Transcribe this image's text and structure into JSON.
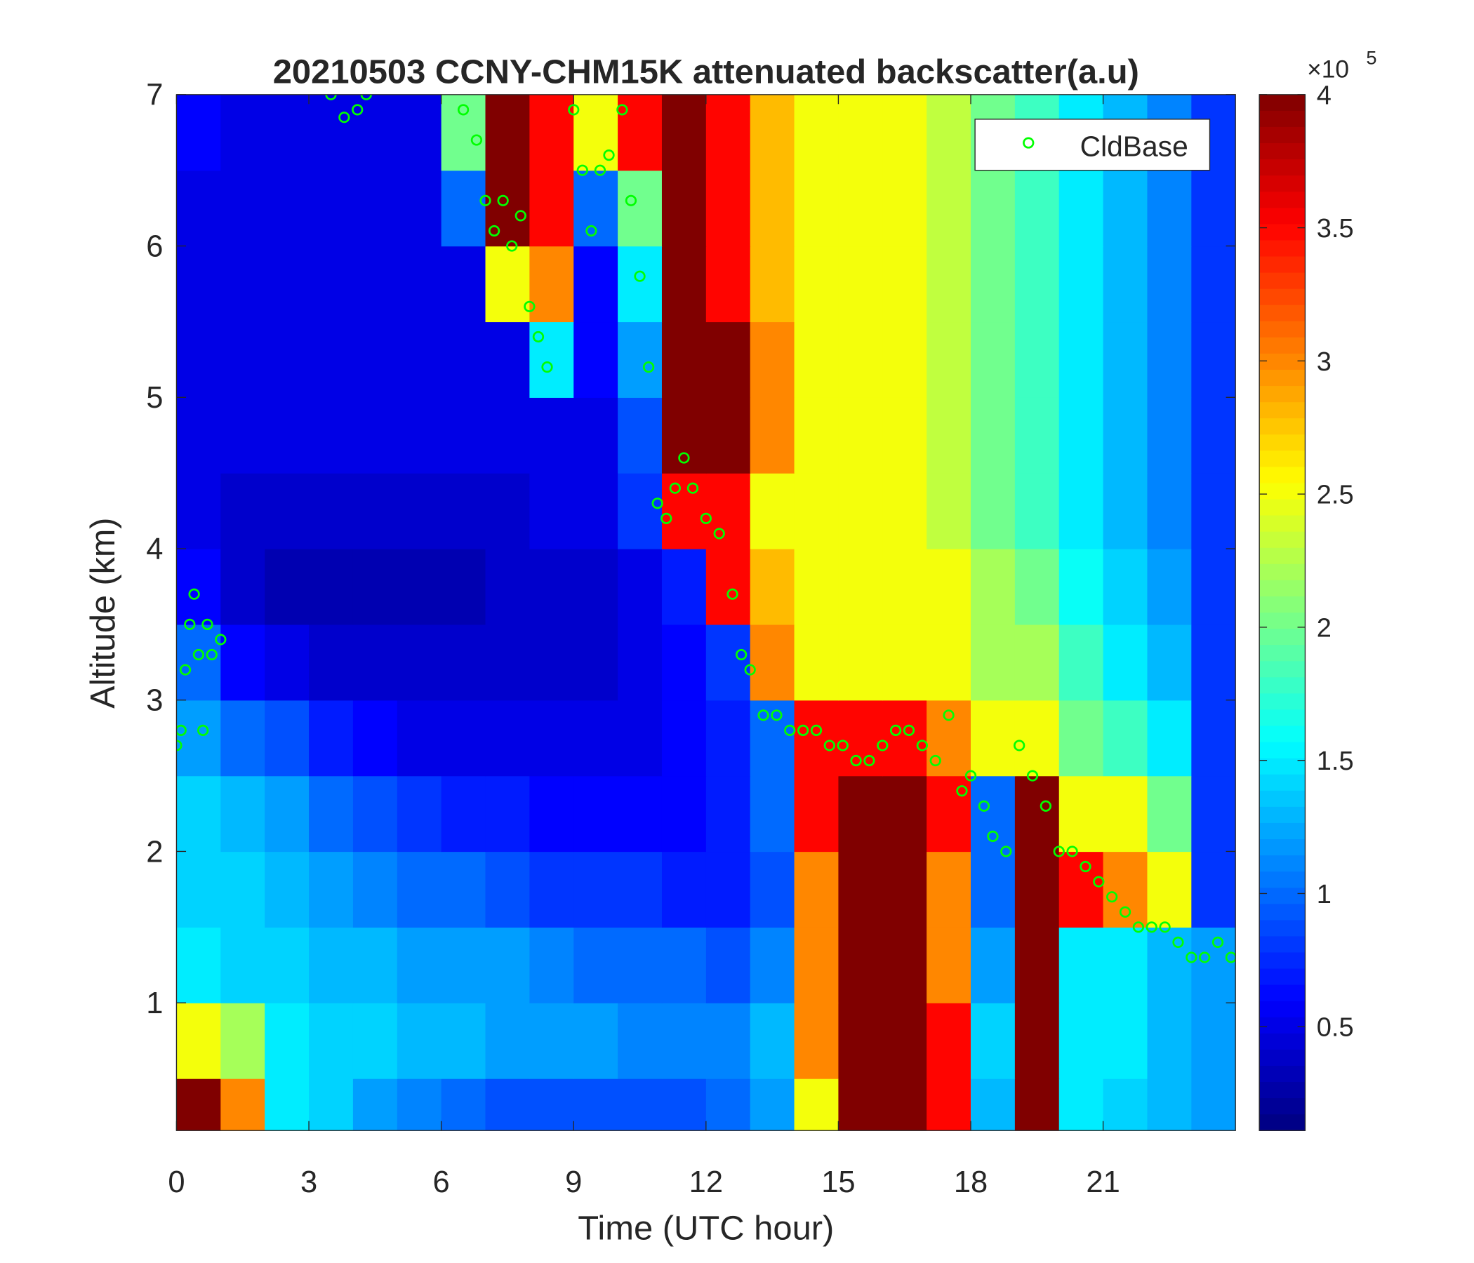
{
  "chart_data": {
    "type": "heatmap",
    "title": "20210503 CCNY-CHM15K attenuated backscatter(a.u)",
    "x_label": "Time (UTC hour)",
    "y_label": "Altitude (km)",
    "xlim": [
      0,
      24
    ],
    "xticks": [
      0,
      3,
      6,
      9,
      12,
      15,
      18,
      21
    ],
    "ylim": [
      0.156,
      7
    ],
    "yticks": [
      1,
      2,
      3,
      4,
      5,
      6,
      7
    ],
    "x": [
      0.5,
      1.5,
      2.5,
      3.5,
      4.5,
      5.5,
      6.5,
      7.5,
      8.5,
      9.5,
      10.5,
      11.5,
      12.5,
      13.5,
      14.5,
      15.5,
      16.5,
      17.5,
      18.5,
      19.5,
      20.5,
      21.5,
      22.5,
      23.5
    ],
    "y": [
      0.25,
      0.75,
      1.25,
      1.75,
      2.25,
      2.75,
      3.25,
      3.75,
      4.25,
      4.75,
      5.25,
      5.75,
      6.25,
      6.75
    ],
    "z": [
      [
        4,
        3,
        1.5,
        1.4,
        1.2,
        1.1,
        1.0,
        0.9,
        0.9,
        0.9,
        0.9,
        0.9,
        1.0,
        1.2,
        2.5,
        4,
        4,
        3.5,
        1.3,
        4,
        1.5,
        1.4,
        1.3,
        1.2
      ],
      [
        2.5,
        2.2,
        1.5,
        1.4,
        1.4,
        1.3,
        1.3,
        1.2,
        1.2,
        1.2,
        1.1,
        1.1,
        1.1,
        1.3,
        3,
        4,
        4,
        3.5,
        1.4,
        4,
        1.5,
        1.5,
        1.3,
        1.2
      ],
      [
        1.5,
        1.4,
        1.4,
        1.3,
        1.3,
        1.2,
        1.2,
        1.2,
        1.1,
        1.0,
        1.0,
        1.0,
        0.9,
        1.1,
        3,
        4,
        4,
        3,
        1.2,
        4,
        1.5,
        1.5,
        1.3,
        1.2
      ],
      [
        1.4,
        1.4,
        1.3,
        1.2,
        1.1,
        1.0,
        1.0,
        0.9,
        0.8,
        0.8,
        0.8,
        0.7,
        0.7,
        0.9,
        3,
        4,
        4,
        3,
        1.0,
        4,
        3.5,
        3,
        2.5,
        0.8
      ],
      [
        1.4,
        1.3,
        1.2,
        1.0,
        0.9,
        0.8,
        0.7,
        0.7,
        0.6,
        0.6,
        0.6,
        0.6,
        0.7,
        1.0,
        3.5,
        4,
        4,
        3.5,
        1.0,
        4,
        2.5,
        2.5,
        2.0,
        0.8
      ],
      [
        1.2,
        1.0,
        0.9,
        0.7,
        0.6,
        0.5,
        0.5,
        0.5,
        0.5,
        0.5,
        0.5,
        0.6,
        0.7,
        1.0,
        3.5,
        3.5,
        3.5,
        3.0,
        2.5,
        2.5,
        2.0,
        1.8,
        1.5,
        0.8
      ],
      [
        1.0,
        0.6,
        0.5,
        0.4,
        0.4,
        0.4,
        0.4,
        0.4,
        0.4,
        0.4,
        0.5,
        0.6,
        0.8,
        3,
        2.5,
        2.5,
        2.5,
        2.5,
        2.2,
        2.2,
        1.8,
        1.5,
        1.3,
        0.8
      ],
      [
        0.6,
        0.4,
        0.3,
        0.3,
        0.3,
        0.3,
        0.3,
        0.4,
        0.4,
        0.4,
        0.5,
        0.7,
        3.5,
        2.8,
        2.5,
        2.5,
        2.5,
        2.5,
        2.2,
        2.0,
        1.6,
        1.4,
        1.2,
        0.8
      ],
      [
        0.5,
        0.4,
        0.4,
        0.4,
        0.4,
        0.4,
        0.4,
        0.4,
        0.5,
        0.5,
        0.8,
        3.5,
        3.5,
        2.5,
        2.5,
        2.5,
        2.5,
        2.3,
        2.0,
        1.8,
        1.5,
        1.3,
        1.1,
        0.8
      ],
      [
        0.5,
        0.5,
        0.5,
        0.5,
        0.5,
        0.5,
        0.5,
        0.5,
        0.5,
        0.5,
        0.9,
        4,
        4,
        3,
        2.5,
        2.5,
        2.5,
        2.3,
        2.0,
        1.8,
        1.5,
        1.3,
        1.1,
        0.8
      ],
      [
        0.5,
        0.5,
        0.5,
        0.5,
        0.5,
        0.5,
        0.5,
        0.5,
        1.5,
        0.6,
        1.2,
        4,
        4,
        3,
        2.5,
        2.5,
        2.5,
        2.3,
        2.0,
        1.8,
        1.5,
        1.3,
        1.1,
        0.8
      ],
      [
        0.5,
        0.5,
        0.5,
        0.5,
        0.5,
        0.5,
        0.5,
        2.5,
        3,
        0.6,
        1.5,
        4,
        3.5,
        2.8,
        2.5,
        2.5,
        2.5,
        2.3,
        2.0,
        1.8,
        1.5,
        1.3,
        1.1,
        0.8
      ],
      [
        0.5,
        0.5,
        0.5,
        0.5,
        0.5,
        0.5,
        1,
        4,
        3.5,
        1,
        2,
        4,
        3.5,
        2.8,
        2.5,
        2.5,
        2.5,
        2.3,
        2.0,
        1.8,
        1.5,
        1.3,
        1.1,
        0.8
      ],
      [
        0.6,
        0.5,
        0.5,
        0.5,
        0.5,
        0.5,
        2,
        4,
        3.5,
        2.5,
        3.5,
        4,
        3.5,
        2.8,
        2.5,
        2.5,
        2.5,
        2.3,
        2.0,
        1.8,
        1.5,
        1.3,
        1.1,
        0.8
      ]
    ],
    "colormap": "jet",
    "clim": [
      0.11,
      4
    ],
    "cticks": [
      0.5,
      1,
      1.5,
      2,
      2.5,
      3,
      3.5,
      4
    ],
    "colorbar_multiplier": {
      "base": "×10",
      "exponent": "5"
    },
    "series": [
      {
        "name": "CldBase",
        "color": "#00ff00",
        "type": "scatter",
        "x": [
          0.0,
          0.1,
          0.2,
          0.3,
          0.4,
          0.5,
          0.6,
          0.7,
          0.8,
          1.0,
          3.5,
          3.8,
          4.1,
          4.3,
          6.5,
          6.8,
          7.0,
          7.2,
          7.4,
          7.6,
          7.8,
          8.0,
          8.2,
          8.4,
          9.0,
          9.2,
          9.4,
          9.6,
          9.8,
          10.1,
          10.3,
          10.5,
          10.7,
          10.9,
          11.1,
          11.3,
          11.5,
          11.7,
          12.0,
          12.3,
          12.6,
          12.8,
          13.0,
          13.3,
          13.6,
          13.9,
          14.2,
          14.5,
          14.8,
          15.1,
          15.4,
          15.7,
          16.0,
          16.3,
          16.6,
          16.9,
          17.2,
          17.5,
          17.8,
          18.0,
          18.3,
          18.5,
          18.8,
          19.1,
          19.4,
          19.7,
          20.0,
          20.3,
          20.6,
          20.9,
          21.2,
          21.5,
          21.8,
          22.1,
          22.4,
          22.7,
          23.0,
          23.3,
          23.6,
          23.9
        ],
        "values": [
          2.7,
          2.8,
          3.2,
          3.5,
          3.7,
          3.3,
          2.8,
          3.5,
          3.3,
          3.4,
          7.0,
          6.85,
          6.9,
          7.0,
          6.9,
          6.7,
          6.3,
          6.1,
          6.3,
          6.0,
          6.2,
          5.6,
          5.4,
          5.2,
          6.9,
          6.5,
          6.1,
          6.5,
          6.6,
          6.9,
          6.3,
          5.8,
          5.2,
          4.3,
          4.2,
          4.4,
          4.6,
          4.4,
          4.2,
          4.1,
          3.7,
          3.3,
          3.2,
          2.9,
          2.9,
          2.8,
          2.8,
          2.8,
          2.7,
          2.7,
          2.6,
          2.6,
          2.7,
          2.8,
          2.8,
          2.7,
          2.6,
          2.9,
          2.4,
          2.5,
          2.3,
          2.1,
          2.0,
          2.7,
          2.5,
          2.3,
          2.0,
          2.0,
          1.9,
          1.8,
          1.7,
          1.6,
          1.5,
          1.5,
          1.5,
          1.4,
          1.3,
          1.3,
          1.4,
          1.3
        ]
      }
    ],
    "legend": "upper right"
  }
}
